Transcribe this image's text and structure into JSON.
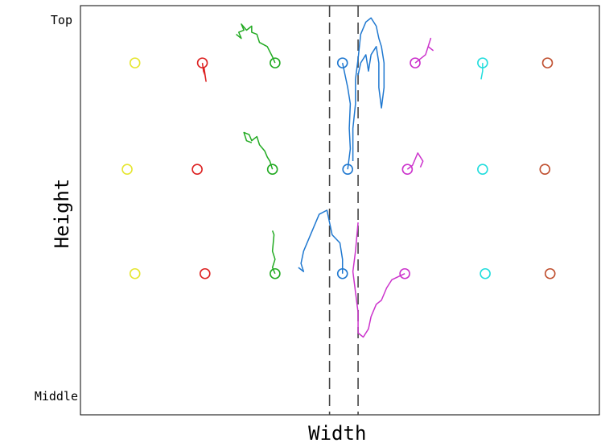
{
  "chart_data": {
    "type": "scatter",
    "xlabel": "Width",
    "ylabel": "Height",
    "y_tick_labels": {
      "top": "Top",
      "bottom": "Middle"
    },
    "grid": false,
    "dashed_vertical_lines": [
      0.48,
      0.535
    ],
    "rows": [
      {
        "y": 0.86,
        "markers": [
          {
            "x": 0.105,
            "color": "#e6e632"
          },
          {
            "x": 0.235,
            "color": "#dd2222"
          },
          {
            "x": 0.375,
            "color": "#22aa22"
          },
          {
            "x": 0.505,
            "color": "#1f78d0"
          },
          {
            "x": 0.645,
            "color": "#cc33cc"
          },
          {
            "x": 0.775,
            "color": "#22dddd"
          },
          {
            "x": 0.9,
            "color": "#c05030"
          }
        ]
      },
      {
        "y": 0.6,
        "markers": [
          {
            "x": 0.09,
            "color": "#e6e632"
          },
          {
            "x": 0.225,
            "color": "#dd2222"
          },
          {
            "x": 0.37,
            "color": "#22aa22"
          },
          {
            "x": 0.515,
            "color": "#1f78d0"
          },
          {
            "x": 0.63,
            "color": "#cc33cc"
          },
          {
            "x": 0.775,
            "color": "#22dddd"
          },
          {
            "x": 0.895,
            "color": "#c05030"
          }
        ]
      },
      {
        "y": 0.345,
        "markers": [
          {
            "x": 0.105,
            "color": "#e6e632"
          },
          {
            "x": 0.24,
            "color": "#dd2222"
          },
          {
            "x": 0.375,
            "color": "#22aa22"
          },
          {
            "x": 0.505,
            "color": "#1f78d0"
          },
          {
            "x": 0.625,
            "color": "#cc33cc"
          },
          {
            "x": 0.78,
            "color": "#22dddd"
          },
          {
            "x": 0.905,
            "color": "#c05030"
          }
        ]
      }
    ],
    "trajectories": [
      {
        "color": "#dd2222",
        "points": [
          [
            0.235,
            0.86
          ],
          [
            0.237,
            0.84
          ],
          [
            0.24,
            0.83
          ],
          [
            0.242,
            0.815
          ],
          [
            0.238,
            0.85
          ]
        ]
      },
      {
        "color": "#22aa22",
        "points": [
          [
            0.375,
            0.86
          ],
          [
            0.37,
            0.875
          ],
          [
            0.36,
            0.9
          ],
          [
            0.345,
            0.91
          ],
          [
            0.34,
            0.93
          ],
          [
            0.33,
            0.935
          ],
          [
            0.33,
            0.95
          ],
          [
            0.32,
            0.94
          ],
          [
            0.31,
            0.955
          ],
          [
            0.315,
            0.94
          ],
          [
            0.305,
            0.935
          ],
          [
            0.31,
            0.92
          ],
          [
            0.3,
            0.93
          ]
        ]
      },
      {
        "color": "#22aa22",
        "points": [
          [
            0.37,
            0.6
          ],
          [
            0.365,
            0.62
          ],
          [
            0.36,
            0.63
          ],
          [
            0.355,
            0.645
          ],
          [
            0.345,
            0.66
          ],
          [
            0.34,
            0.68
          ],
          [
            0.33,
            0.67
          ],
          [
            0.325,
            0.685
          ],
          [
            0.315,
            0.69
          ],
          [
            0.32,
            0.67
          ],
          [
            0.33,
            0.665
          ]
        ]
      },
      {
        "color": "#22aa22",
        "points": [
          [
            0.375,
            0.345
          ],
          [
            0.37,
            0.36
          ],
          [
            0.375,
            0.38
          ],
          [
            0.37,
            0.4
          ],
          [
            0.373,
            0.44
          ],
          [
            0.37,
            0.45
          ]
        ]
      },
      {
        "color": "#1f78d0",
        "points": [
          [
            0.505,
            0.86
          ],
          [
            0.51,
            0.83
          ],
          [
            0.515,
            0.8
          ],
          [
            0.52,
            0.76
          ],
          [
            0.518,
            0.7
          ],
          [
            0.52,
            0.65
          ],
          [
            0.515,
            0.6
          ]
        ]
      },
      {
        "color": "#1f78d0",
        "points": [
          [
            0.525,
            0.62
          ],
          [
            0.525,
            0.7
          ],
          [
            0.53,
            0.76
          ],
          [
            0.53,
            0.82
          ],
          [
            0.535,
            0.87
          ],
          [
            0.54,
            0.93
          ],
          [
            0.55,
            0.96
          ],
          [
            0.56,
            0.97
          ],
          [
            0.57,
            0.95
          ],
          [
            0.575,
            0.92
          ],
          [
            0.58,
            0.9
          ],
          [
            0.585,
            0.86
          ],
          [
            0.585,
            0.8
          ],
          [
            0.58,
            0.75
          ],
          [
            0.575,
            0.8
          ],
          [
            0.575,
            0.86
          ],
          [
            0.57,
            0.9
          ],
          [
            0.56,
            0.88
          ],
          [
            0.555,
            0.84
          ],
          [
            0.55,
            0.88
          ],
          [
            0.54,
            0.86
          ],
          [
            0.535,
            0.83
          ]
        ]
      },
      {
        "color": "#1f78d0",
        "points": [
          [
            0.505,
            0.345
          ],
          [
            0.505,
            0.38
          ],
          [
            0.5,
            0.42
          ],
          [
            0.485,
            0.44
          ],
          [
            0.48,
            0.47
          ],
          [
            0.475,
            0.5
          ],
          [
            0.46,
            0.49
          ],
          [
            0.45,
            0.46
          ],
          [
            0.44,
            0.43
          ],
          [
            0.43,
            0.4
          ],
          [
            0.425,
            0.37
          ],
          [
            0.43,
            0.35
          ],
          [
            0.42,
            0.36
          ]
        ]
      },
      {
        "color": "#cc33cc",
        "points": [
          [
            0.645,
            0.86
          ],
          [
            0.655,
            0.87
          ],
          [
            0.665,
            0.88
          ],
          [
            0.67,
            0.9
          ],
          [
            0.675,
            0.92
          ],
          [
            0.67,
            0.9
          ],
          [
            0.68,
            0.89
          ]
        ]
      },
      {
        "color": "#cc33cc",
        "points": [
          [
            0.63,
            0.6
          ],
          [
            0.64,
            0.61
          ],
          [
            0.645,
            0.625
          ],
          [
            0.65,
            0.64
          ],
          [
            0.66,
            0.62
          ],
          [
            0.655,
            0.605
          ]
        ]
      },
      {
        "color": "#cc33cc",
        "points": [
          [
            0.625,
            0.345
          ],
          [
            0.6,
            0.33
          ],
          [
            0.59,
            0.31
          ],
          [
            0.58,
            0.28
          ],
          [
            0.57,
            0.27
          ],
          [
            0.56,
            0.24
          ],
          [
            0.555,
            0.21
          ],
          [
            0.545,
            0.19
          ],
          [
            0.535,
            0.2
          ],
          [
            0.535,
            0.25
          ],
          [
            0.53,
            0.3
          ],
          [
            0.525,
            0.35
          ],
          [
            0.53,
            0.4
          ],
          [
            0.535,
            0.47
          ]
        ]
      },
      {
        "color": "#22dddd",
        "points": [
          [
            0.775,
            0.86
          ],
          [
            0.775,
            0.84
          ],
          [
            0.772,
            0.82
          ]
        ]
      }
    ]
  }
}
